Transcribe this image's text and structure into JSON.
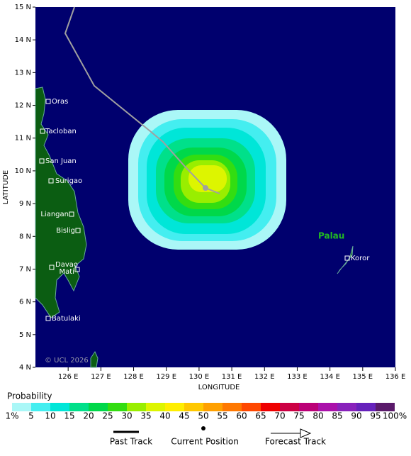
{
  "map": {
    "lon_range": [
      125,
      136
    ],
    "lat_range": [
      4,
      15
    ],
    "lon_ticks": [
      {
        "value": 126,
        "label": "126 E"
      },
      {
        "value": 127,
        "label": "127 E"
      },
      {
        "value": 128,
        "label": "128 E"
      },
      {
        "value": 129,
        "label": "129 E"
      },
      {
        "value": 130,
        "label": "130 E"
      },
      {
        "value": 131,
        "label": "131 E"
      },
      {
        "value": 132,
        "label": "132 E"
      },
      {
        "value": 133,
        "label": "133 E"
      },
      {
        "value": 134,
        "label": "134 E"
      },
      {
        "value": 135,
        "label": "135 E"
      },
      {
        "value": 136,
        "label": "136 E"
      }
    ],
    "lat_ticks": [
      {
        "value": 4,
        "label": "4 N"
      },
      {
        "value": 5,
        "label": "5 N"
      },
      {
        "value": 6,
        "label": "6 N"
      },
      {
        "value": 7,
        "label": "7 N"
      },
      {
        "value": 8,
        "label": "8 N"
      },
      {
        "value": 9,
        "label": "9 N"
      },
      {
        "value": 10,
        "label": "10 N"
      },
      {
        "value": 11,
        "label": "11 N"
      },
      {
        "value": 12,
        "label": "12 N"
      },
      {
        "value": 13,
        "label": "13 N"
      },
      {
        "value": 14,
        "label": "14 N"
      },
      {
        "value": 15,
        "label": "15 N"
      }
    ],
    "x_label": "LONGITUDE",
    "y_label": "LATITUDE",
    "copyright": "© UCL 2026",
    "region_label": "Palau",
    "places": [
      "Oras",
      "Tacloban",
      "San Juan",
      "Surigao",
      "Liangan",
      "Bislig",
      "Davao",
      "Mati",
      "Batulaki",
      "Koror"
    ]
  },
  "colorbar": {
    "title": "Probability",
    "labels": [
      "1%",
      "5",
      "10",
      "15",
      "20",
      "25",
      "30",
      "35",
      "40",
      "45",
      "50",
      "55",
      "60",
      "65",
      "70",
      "75",
      "80",
      "85",
      "90",
      "95",
      "100%"
    ],
    "colors": [
      "#aaf7f7",
      "#44eef0",
      "#00e6d8",
      "#00e08a",
      "#00d84a",
      "#33dd11",
      "#99ee00",
      "#ddf500",
      "#ffee00",
      "#ffc800",
      "#ffa000",
      "#ff7800",
      "#ff4800",
      "#ee0000",
      "#cc0044",
      "#bb0077",
      "#aa11aa",
      "#8822bb",
      "#6622bb",
      "#5a1a6a"
    ]
  },
  "legend": {
    "past_track": "Past Track",
    "current_position": "Current Position",
    "forecast_track": "Forecast Track"
  }
}
